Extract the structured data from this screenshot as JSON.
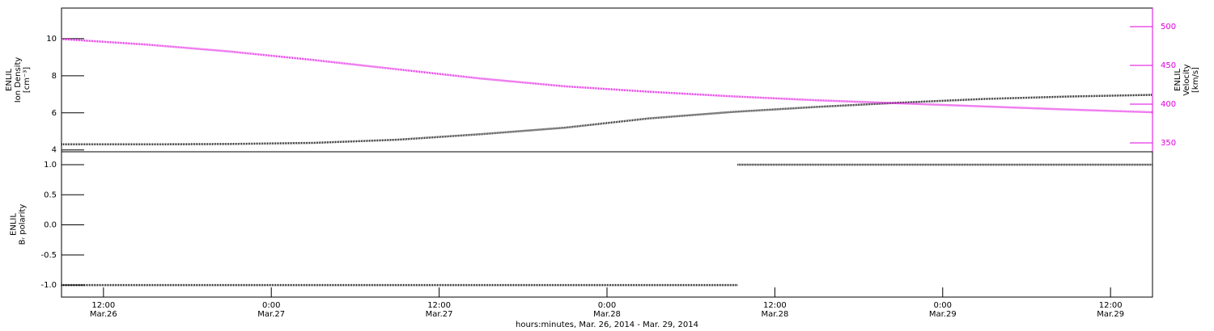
{
  "chart_data": [
    {
      "type": "line",
      "y_label": [
        "ENLIL",
        "Ion Density",
        "[cm⁻³]"
      ],
      "y2_label": [
        "ENLIL",
        "Velocity",
        "[km/s]"
      ],
      "x": [
        "2014-03-26T09:00",
        "2014-03-26T15:00",
        "2014-03-26T21:00",
        "2014-03-27T03:00",
        "2014-03-27T09:00",
        "2014-03-27T15:00",
        "2014-03-27T21:00",
        "2014-03-28T03:00",
        "2014-03-28T09:00",
        "2014-03-28T15:00",
        "2014-03-28T21:00",
        "2014-03-29T03:00",
        "2014-03-29T09:00",
        "2014-03-29T15:00"
      ],
      "series": [
        {
          "name": "Ion Density",
          "color": "#000000",
          "values": [
            4.3,
            4.3,
            4.32,
            4.38,
            4.55,
            4.85,
            5.2,
            5.7,
            6.05,
            6.32,
            6.55,
            6.75,
            6.88,
            6.97
          ]
        },
        {
          "name": "Velocity",
          "color": "#e000e0",
          "axis": "y2",
          "values": [
            484,
            477,
            468,
            457,
            445,
            433,
            423,
            416,
            410,
            405,
            401,
            397,
            393,
            389.5
          ]
        }
      ],
      "xlim": [
        "2014-03-26T09:00",
        "2014-03-29T15:00"
      ],
      "ylim": [
        3.9,
        11.65
      ],
      "yticks": [
        4,
        6,
        8,
        10
      ],
      "y2lim": [
        338.5,
        524
      ],
      "y2ticks": [
        350,
        400,
        450,
        500
      ],
      "y2color": "#e000e0"
    },
    {
      "type": "line",
      "y_label": [
        "ENLIL",
        "Bᵣ polarity"
      ],
      "x_label": "hours:minutes, Mar. 26, 2014 - Mar. 29, 2014",
      "x": [
        "2014-03-26T09:00",
        "2014-03-28T09:20",
        "2014-03-28T09:20",
        "2014-03-28T09:20",
        "2014-03-29T15:00"
      ],
      "series": [
        {
          "name": "Bᵣ polarity",
          "color": "#000000",
          "values": [
            -1,
            -1,
            null,
            1,
            1
          ]
        }
      ],
      "xlim": [
        "2014-03-26T09:00",
        "2014-03-29T15:00"
      ],
      "xticks": [
        {
          "value": "2014-03-26T12:00",
          "label": [
            "12:00",
            "Mar.26"
          ]
        },
        {
          "value": "2014-03-27T00:00",
          "label": [
            "0:00",
            "Mar.27"
          ]
        },
        {
          "value": "2014-03-27T12:00",
          "label": [
            "12:00",
            "Mar.27"
          ]
        },
        {
          "value": "2014-03-28T00:00",
          "label": [
            "0:00",
            "Mar.28"
          ]
        },
        {
          "value": "2014-03-28T12:00",
          "label": [
            "12:00",
            "Mar.28"
          ]
        },
        {
          "value": "2014-03-29T00:00",
          "label": [
            "0:00",
            "Mar.29"
          ]
        },
        {
          "value": "2014-03-29T12:00",
          "label": [
            "12:00",
            "Mar.29"
          ]
        }
      ],
      "ylim": [
        -1.2,
        1.215
      ],
      "yticks": [
        {
          "value": -1,
          "label": "-1.0"
        },
        {
          "value": -0.5,
          "label": "-0.5"
        },
        {
          "value": 0,
          "label": "0.0"
        },
        {
          "value": 0.5,
          "label": "0.5"
        },
        {
          "value": 1,
          "label": "1.0"
        }
      ]
    }
  ]
}
